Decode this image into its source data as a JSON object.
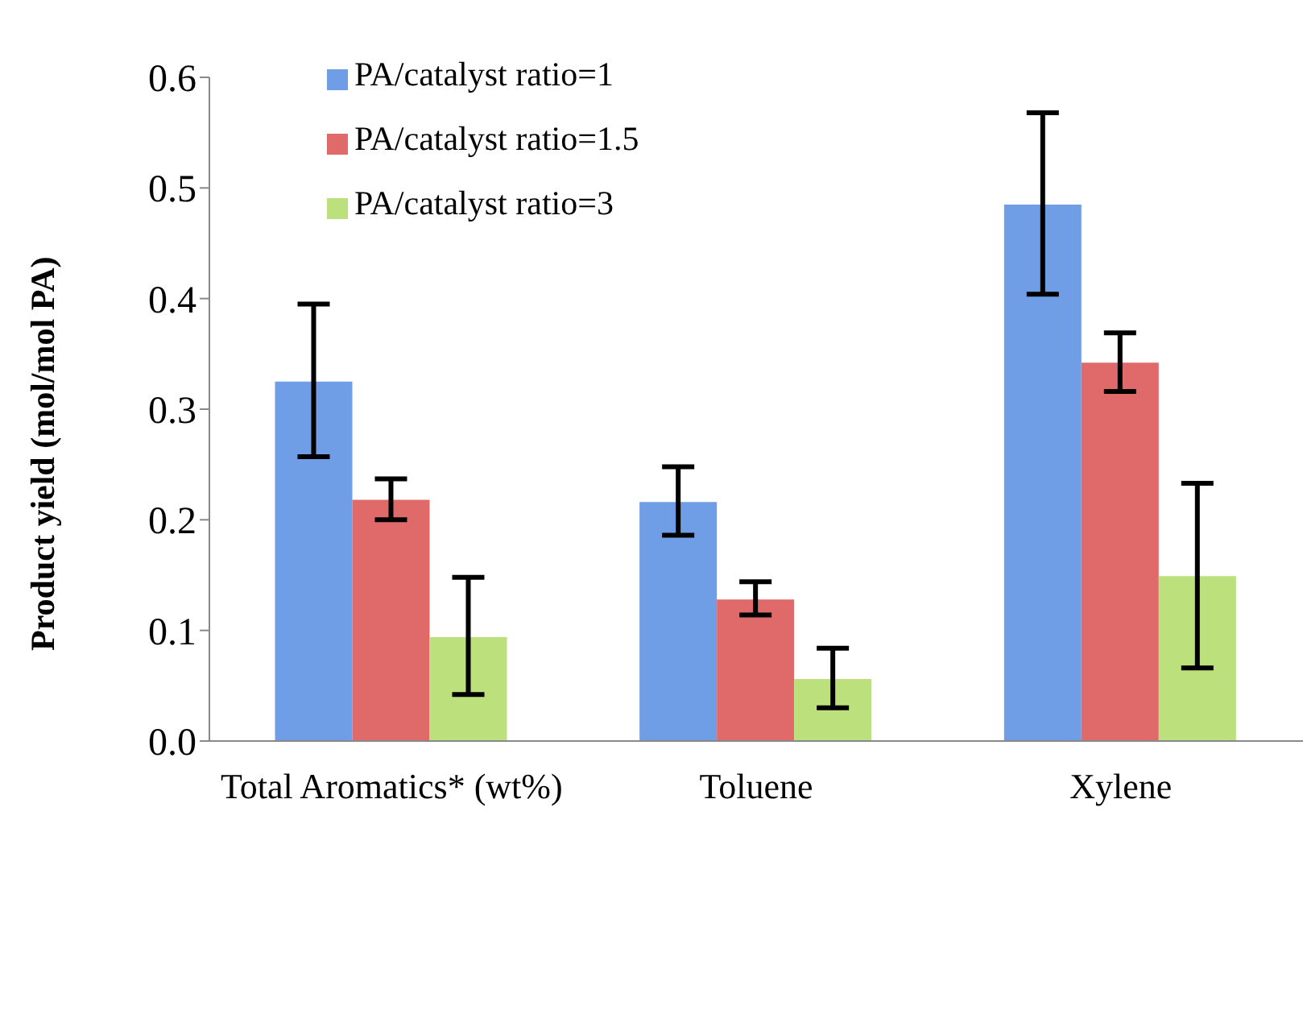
{
  "chart_data": {
    "type": "bar",
    "ylabel": "Product yield (mol/mol PA)",
    "categories": [
      "Total Aromatics* (wt%)",
      "Toluene",
      "Xylene"
    ],
    "series": [
      {
        "name": "PA/catalyst ratio=1",
        "color": "#6f9ee6",
        "values": [
          0.325,
          0.216,
          0.485
        ],
        "errors": [
          [
            0.257,
            0.395
          ],
          [
            0.186,
            0.248
          ],
          [
            0.404,
            0.568
          ]
        ]
      },
      {
        "name": "PA/catalyst ratio=1.5",
        "color": "#e06a6a",
        "values": [
          0.218,
          0.128,
          0.342
        ],
        "errors": [
          [
            0.2,
            0.237
          ],
          [
            0.114,
            0.144
          ],
          [
            0.316,
            0.369
          ]
        ]
      },
      {
        "name": "PA/catalyst ratio=3",
        "color": "#bce07c",
        "values": [
          0.094,
          0.056,
          0.149
        ],
        "errors": [
          [
            0.042,
            0.148
          ],
          [
            0.03,
            0.084
          ],
          [
            0.066,
            0.233
          ]
        ]
      }
    ],
    "ylim": [
      0,
      0.6
    ],
    "yticks": [
      {
        "value": 0,
        "label": "0.0"
      },
      {
        "value": 0.1,
        "label": "0.1"
      },
      {
        "value": 0.2,
        "label": "0.2"
      },
      {
        "value": 0.3,
        "label": "0.3"
      },
      {
        "value": 0.4,
        "label": "0.4"
      },
      {
        "value": 0.5,
        "label": "0.5"
      },
      {
        "value": 0.6,
        "label": "0.6"
      }
    ],
    "grid": false,
    "legend": "top left"
  }
}
